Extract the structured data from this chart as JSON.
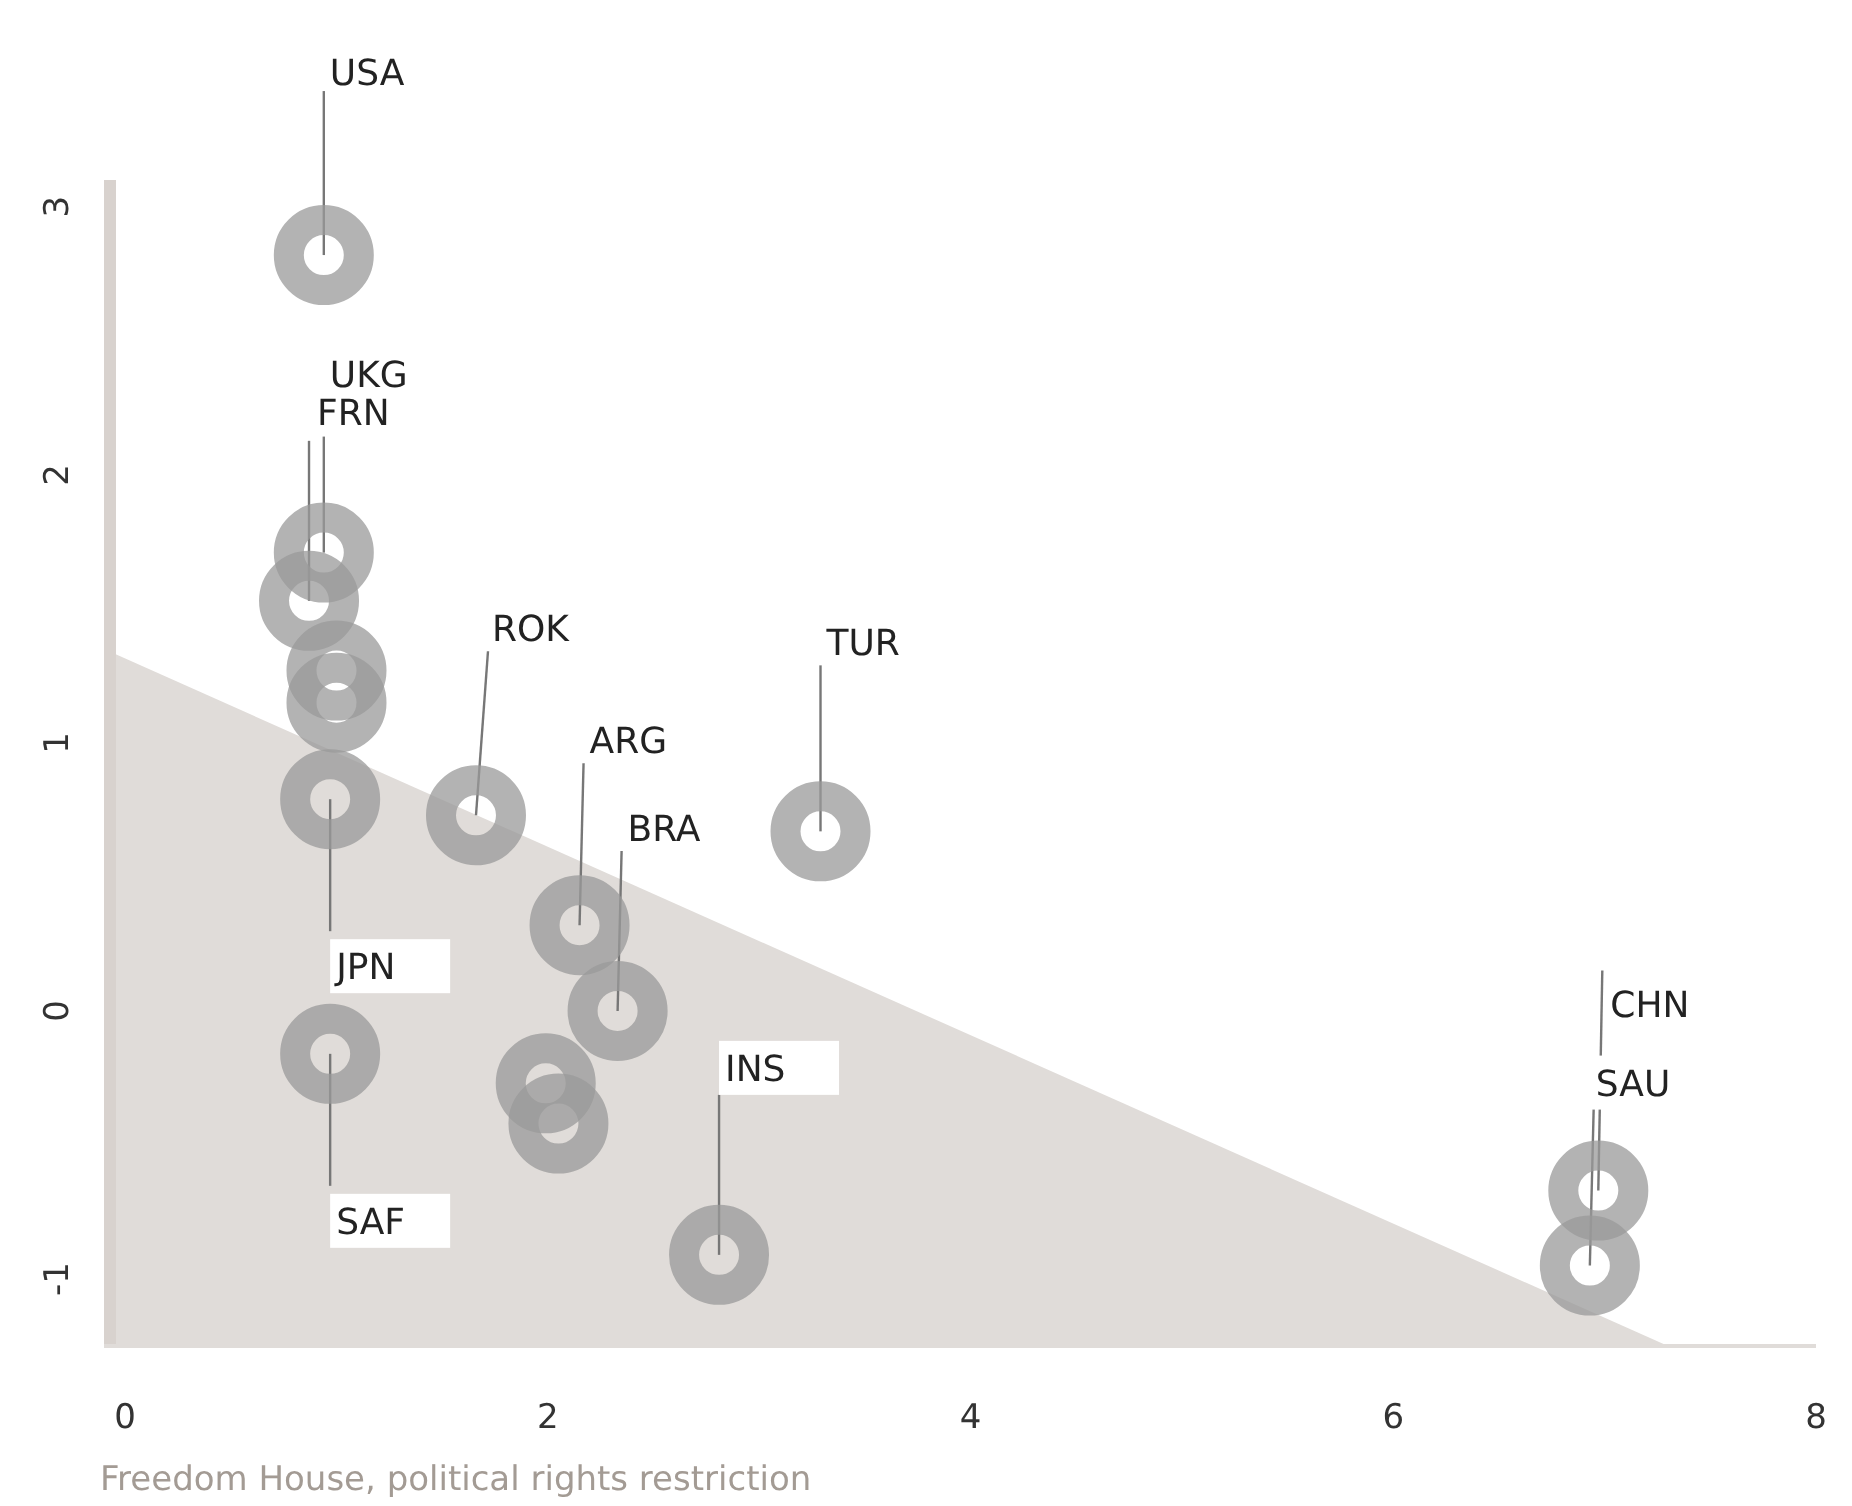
{
  "chart_data": {
    "type": "scatter",
    "xlabel": "Freedom House, political rights restriction",
    "xlim": [
      -0.1,
      8
    ],
    "ylim": [
      -1.25,
      3.1
    ],
    "xticks": [
      0,
      2,
      4,
      6,
      8
    ],
    "yticks": [
      -1,
      0,
      1,
      2,
      3
    ],
    "grid": false,
    "series": [
      {
        "type": "area",
        "color": "#e0dcd9",
        "x": [
          -0.1,
          7.3
        ],
        "values": [
          1.35,
          -1.25
        ]
      },
      {
        "marker": "circle",
        "color": "#999999",
        "x": [
          0.94,
          0.94,
          0.87,
          1.0,
          1.0,
          0.97,
          1.66,
          3.29,
          2.15,
          2.33,
          0.97,
          1.99,
          2.05,
          2.81,
          6.97,
          6.93
        ],
        "values": [
          2.82,
          1.71,
          1.53,
          1.27,
          1.15,
          0.79,
          0.73,
          0.67,
          0.32,
          0.0,
          -0.16,
          -0.27,
          -0.42,
          -0.91,
          -0.67,
          -0.95
        ]
      }
    ],
    "annotations": [
      {
        "text": "USA",
        "x": 0.94,
        "y": 2.82
      },
      {
        "text": "UKG",
        "x": 0.94,
        "y": 1.71
      },
      {
        "text": "FRN",
        "x": 0.87,
        "y": 1.53
      },
      {
        "text": "ROK",
        "x": 1.66,
        "y": 0.73
      },
      {
        "text": "TUR",
        "x": 3.29,
        "y": 0.67
      },
      {
        "text": "ARG",
        "x": 2.15,
        "y": 0.32
      },
      {
        "text": "BRA",
        "x": 2.33,
        "y": 0.0
      },
      {
        "text": "JPN",
        "x": 0.97,
        "y": 0.79
      },
      {
        "text": "SAF",
        "x": 0.97,
        "y": -0.16
      },
      {
        "text": "INS",
        "x": 2.81,
        "y": -0.91
      },
      {
        "text": "CHN",
        "x": 6.97,
        "y": -0.67
      },
      {
        "text": "SAU",
        "x": 6.93,
        "y": -0.95
      }
    ]
  }
}
